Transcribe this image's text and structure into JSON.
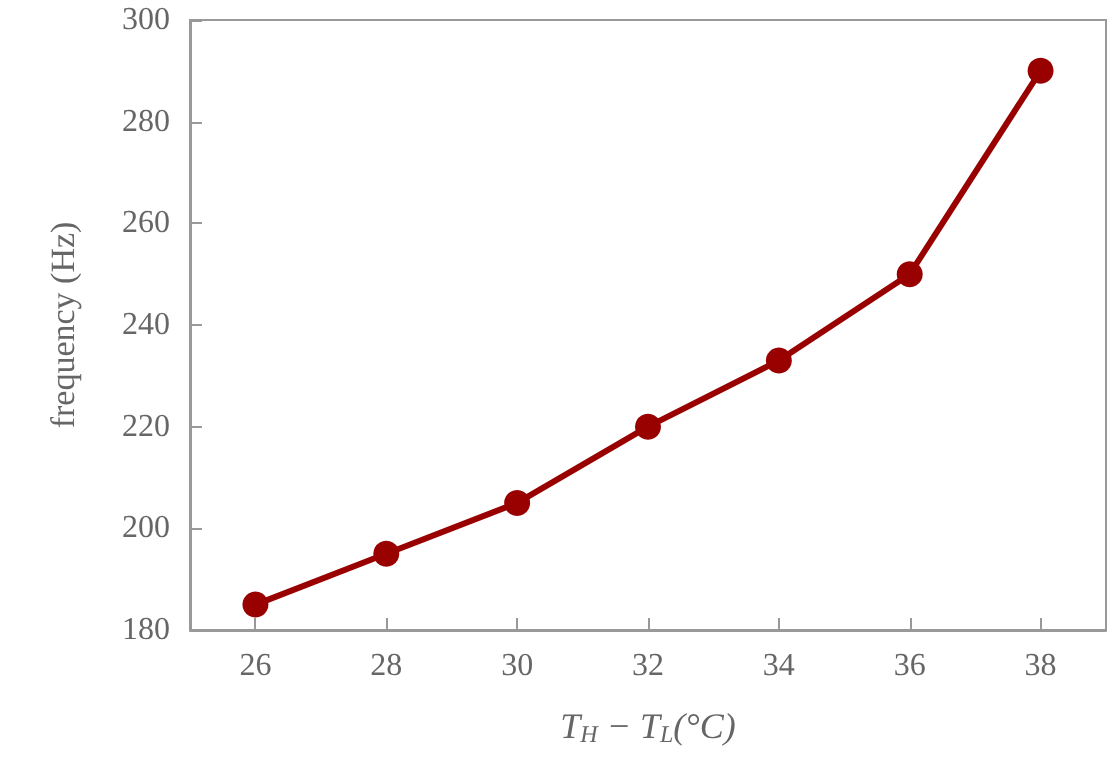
{
  "chart_data": {
    "type": "line",
    "xlabel": "T$_{H}$ − T$_{L}$(°C)",
    "ylabel": "frequency (Hz)",
    "x": [
      26,
      28,
      30,
      32,
      34,
      36,
      38
    ],
    "series": [
      {
        "color": "#990000",
        "values": [
          185,
          195,
          205,
          220,
          233,
          250,
          290
        ]
      }
    ],
    "xlim": [
      25,
      39
    ],
    "xticks": [
      26,
      28,
      30,
      32,
      34,
      36,
      38
    ],
    "ylim": [
      180,
      300
    ],
    "yticks": [
      180,
      200,
      220,
      240,
      260,
      280,
      300
    ],
    "marker": "circle",
    "line_style": "solid"
  }
}
